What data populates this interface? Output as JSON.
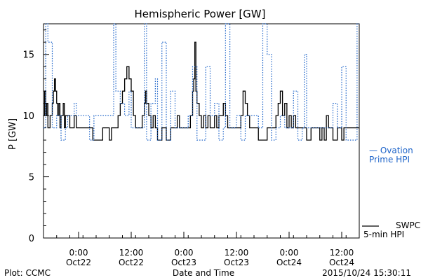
{
  "chart_data": {
    "type": "line",
    "title": "Hemispheric Power [GW]",
    "xlabel": "Date and Time",
    "ylabel": "P [GW]",
    "ylim": [
      0,
      17.5
    ],
    "yticks": [
      0,
      5,
      10,
      15
    ],
    "xlim": [
      "2015-10-21 16:00",
      "2015-10-24 16:00"
    ],
    "xticks": [
      {
        "time": "2015-10-22 00:00",
        "label1": "0:00",
        "label2": "Oct22"
      },
      {
        "time": "2015-10-22 12:00",
        "label1": "12:00",
        "label2": "Oct22"
      },
      {
        "time": "2015-10-23 00:00",
        "label1": "0:00",
        "label2": "Oct23"
      },
      {
        "time": "2015-10-23 12:00",
        "label1": "12:00",
        "label2": "Oct23"
      },
      {
        "time": "2015-10-24 00:00",
        "label1": "0:00",
        "label2": "Oct24"
      },
      {
        "time": "2015-10-24 12:00",
        "label1": "12:00",
        "label2": "Oct24"
      }
    ],
    "grid": false,
    "legend_position": "right",
    "series": [
      {
        "name": "SWPC 5-min HPI",
        "color": "#000000",
        "style": "solid",
        "points": [
          [
            "2015-10-21 16:00",
            10
          ],
          [
            "2015-10-21 16:15",
            12
          ],
          [
            "2015-10-21 16:30",
            10
          ],
          [
            "2015-10-21 16:45",
            11
          ],
          [
            "2015-10-21 17:00",
            9
          ],
          [
            "2015-10-21 17:30",
            10
          ],
          [
            "2015-10-21 18:00",
            11
          ],
          [
            "2015-10-21 18:15",
            12
          ],
          [
            "2015-10-21 18:30",
            13
          ],
          [
            "2015-10-21 18:45",
            12
          ],
          [
            "2015-10-21 19:00",
            11
          ],
          [
            "2015-10-21 19:15",
            10
          ],
          [
            "2015-10-21 19:30",
            11
          ],
          [
            "2015-10-21 19:45",
            9
          ],
          [
            "2015-10-21 20:00",
            10
          ],
          [
            "2015-10-21 20:30",
            11
          ],
          [
            "2015-10-21 20:45",
            9
          ],
          [
            "2015-10-21 21:00",
            10
          ],
          [
            "2015-10-21 22:00",
            9
          ],
          [
            "2015-10-21 23:00",
            10
          ],
          [
            "2015-10-21 23:30",
            9
          ],
          [
            "2015-10-22 00:00",
            9
          ],
          [
            "2015-10-22 03:00",
            9
          ],
          [
            "2015-10-22 03:15",
            8
          ],
          [
            "2015-10-22 05:00",
            8
          ],
          [
            "2015-10-22 05:30",
            9
          ],
          [
            "2015-10-22 06:30",
            9
          ],
          [
            "2015-10-22 07:00",
            8
          ],
          [
            "2015-10-22 07:30",
            9
          ],
          [
            "2015-10-22 08:30",
            9
          ],
          [
            "2015-10-22 09:00",
            10
          ],
          [
            "2015-10-22 09:30",
            11
          ],
          [
            "2015-10-22 10:00",
            12
          ],
          [
            "2015-10-22 10:30",
            13
          ],
          [
            "2015-10-22 11:00",
            14
          ],
          [
            "2015-10-22 11:30",
            13
          ],
          [
            "2015-10-22 12:00",
            12
          ],
          [
            "2015-10-22 12:30",
            10
          ],
          [
            "2015-10-22 13:00",
            9
          ],
          [
            "2015-10-22 14:00",
            9
          ],
          [
            "2015-10-22 14:30",
            10
          ],
          [
            "2015-10-22 15:00",
            11
          ],
          [
            "2015-10-22 15:15",
            12
          ],
          [
            "2015-10-22 15:30",
            11
          ],
          [
            "2015-10-22 16:00",
            10
          ],
          [
            "2015-10-22 16:30",
            9
          ],
          [
            "2015-10-22 17:00",
            10
          ],
          [
            "2015-10-22 17:30",
            9
          ],
          [
            "2015-10-22 18:00",
            8
          ],
          [
            "2015-10-22 19:00",
            9
          ],
          [
            "2015-10-22 20:00",
            8
          ],
          [
            "2015-10-22 21:00",
            9
          ],
          [
            "2015-10-22 22:00",
            9
          ],
          [
            "2015-10-22 22:30",
            10
          ],
          [
            "2015-10-22 23:00",
            9
          ],
          [
            "2015-10-23 00:00",
            9
          ],
          [
            "2015-10-23 01:00",
            9
          ],
          [
            "2015-10-23 01:30",
            10
          ],
          [
            "2015-10-23 02:00",
            12
          ],
          [
            "2015-10-23 02:15",
            13
          ],
          [
            "2015-10-23 02:30",
            16
          ],
          [
            "2015-10-23 02:45",
            12
          ],
          [
            "2015-10-23 03:00",
            11
          ],
          [
            "2015-10-23 03:30",
            10
          ],
          [
            "2015-10-23 04:00",
            9
          ],
          [
            "2015-10-23 04:30",
            10
          ],
          [
            "2015-10-23 05:00",
            9
          ],
          [
            "2015-10-23 05:30",
            10
          ],
          [
            "2015-10-23 06:00",
            9
          ],
          [
            "2015-10-23 07:00",
            10
          ],
          [
            "2015-10-23 07:30",
            9
          ],
          [
            "2015-10-23 08:00",
            10
          ],
          [
            "2015-10-23 09:00",
            11
          ],
          [
            "2015-10-23 09:30",
            10
          ],
          [
            "2015-10-23 10:00",
            9
          ],
          [
            "2015-10-23 11:00",
            9
          ],
          [
            "2015-10-23 12:00",
            9
          ],
          [
            "2015-10-23 13:00",
            10
          ],
          [
            "2015-10-23 13:30",
            12
          ],
          [
            "2015-10-23 14:00",
            11
          ],
          [
            "2015-10-23 14:30",
            10
          ],
          [
            "2015-10-23 15:00",
            9
          ],
          [
            "2015-10-23 16:00",
            9
          ],
          [
            "2015-10-23 17:00",
            8
          ],
          [
            "2015-10-23 19:00",
            9
          ],
          [
            "2015-10-23 20:00",
            9
          ],
          [
            "2015-10-23 21:00",
            10
          ],
          [
            "2015-10-23 21:30",
            11
          ],
          [
            "2015-10-23 22:00",
            12
          ],
          [
            "2015-10-23 22:30",
            10
          ],
          [
            "2015-10-23 23:00",
            11
          ],
          [
            "2015-10-23 23:30",
            9
          ],
          [
            "2015-10-24 00:00",
            10
          ],
          [
            "2015-10-24 00:30",
            9
          ],
          [
            "2015-10-24 01:00",
            10
          ],
          [
            "2015-10-24 01:30",
            9
          ],
          [
            "2015-10-24 03:00",
            9
          ],
          [
            "2015-10-24 04:00",
            8
          ],
          [
            "2015-10-24 05:00",
            9
          ],
          [
            "2015-10-24 06:00",
            9
          ],
          [
            "2015-10-24 07:00",
            8
          ],
          [
            "2015-10-24 07:30",
            9
          ],
          [
            "2015-10-24 08:00",
            8
          ],
          [
            "2015-10-24 08:30",
            10
          ],
          [
            "2015-10-24 09:00",
            9
          ],
          [
            "2015-10-24 10:00",
            8
          ],
          [
            "2015-10-24 11:00",
            9
          ],
          [
            "2015-10-24 12:00",
            8
          ],
          [
            "2015-10-24 12:30",
            9
          ],
          [
            "2015-10-24 16:00",
            9
          ]
        ]
      },
      {
        "name": "Ovation Prime HPI",
        "color": "#1c63c9",
        "style": "dotted",
        "points": [
          [
            "2015-10-21 16:00",
            9
          ],
          [
            "2015-10-21 16:30",
            17.5
          ],
          [
            "2015-10-21 17:00",
            16
          ],
          [
            "2015-10-21 18:00",
            9
          ],
          [
            "2015-10-21 19:00",
            10
          ],
          [
            "2015-10-21 20:00",
            8
          ],
          [
            "2015-10-21 21:00",
            9
          ],
          [
            "2015-10-21 21:30",
            10
          ],
          [
            "2015-10-21 23:00",
            11
          ],
          [
            "2015-10-21 23:30",
            10
          ],
          [
            "2015-10-22 00:00",
            10
          ],
          [
            "2015-10-22 02:00",
            10
          ],
          [
            "2015-10-22 02:30",
            8
          ],
          [
            "2015-10-22 03:30",
            10
          ],
          [
            "2015-10-22 07:30",
            10
          ],
          [
            "2015-10-22 08:00",
            17.5
          ],
          [
            "2015-10-22 08:30",
            12
          ],
          [
            "2015-10-22 09:30",
            11
          ],
          [
            "2015-10-22 10:30",
            10
          ],
          [
            "2015-10-22 11:30",
            12
          ],
          [
            "2015-10-22 12:00",
            9
          ],
          [
            "2015-10-22 14:30",
            9
          ],
          [
            "2015-10-22 15:00",
            17.5
          ],
          [
            "2015-10-22 15:30",
            8
          ],
          [
            "2015-10-22 16:30",
            11
          ],
          [
            "2015-10-22 17:30",
            13
          ],
          [
            "2015-10-22 18:00",
            8
          ],
          [
            "2015-10-22 19:00",
            16
          ],
          [
            "2015-10-22 20:00",
            8
          ],
          [
            "2015-10-22 21:00",
            12
          ],
          [
            "2015-10-22 22:00",
            9
          ],
          [
            "2015-10-23 00:00",
            9
          ],
          [
            "2015-10-23 01:00",
            10
          ],
          [
            "2015-10-23 02:00",
            14
          ],
          [
            "2015-10-23 03:00",
            8
          ],
          [
            "2015-10-23 04:30",
            8
          ],
          [
            "2015-10-23 05:00",
            14
          ],
          [
            "2015-10-23 06:00",
            10
          ],
          [
            "2015-10-23 07:00",
            11
          ],
          [
            "2015-10-23 08:00",
            8
          ],
          [
            "2015-10-23 09:00",
            9
          ],
          [
            "2015-10-23 09:30",
            17.5
          ],
          [
            "2015-10-23 10:30",
            9
          ],
          [
            "2015-10-23 12:00",
            10
          ],
          [
            "2015-10-23 13:00",
            8
          ],
          [
            "2015-10-23 14:00",
            10
          ],
          [
            "2015-10-23 16:00",
            10
          ],
          [
            "2015-10-23 17:00",
            9
          ],
          [
            "2015-10-23 18:00",
            17.5
          ],
          [
            "2015-10-23 19:00",
            15
          ],
          [
            "2015-10-23 20:00",
            8
          ],
          [
            "2015-10-23 21:00",
            9
          ],
          [
            "2015-10-23 22:00",
            10
          ],
          [
            "2015-10-23 23:00",
            9
          ],
          [
            "2015-10-24 00:00",
            9
          ],
          [
            "2015-10-24 01:00",
            12
          ],
          [
            "2015-10-24 02:00",
            8
          ],
          [
            "2015-10-24 03:00",
            9
          ],
          [
            "2015-10-24 03:30",
            15
          ],
          [
            "2015-10-24 04:00",
            9
          ],
          [
            "2015-10-24 06:00",
            9
          ],
          [
            "2015-10-24 07:00",
            9
          ],
          [
            "2015-10-24 08:00",
            9
          ],
          [
            "2015-10-24 10:00",
            11
          ],
          [
            "2015-10-24 11:00",
            9
          ],
          [
            "2015-10-24 12:00",
            14
          ],
          [
            "2015-10-24 13:00",
            8
          ],
          [
            "2015-10-24 15:00",
            8
          ],
          [
            "2015-10-24 15:30",
            17.5
          ],
          [
            "2015-10-24 16:00",
            17.5
          ]
        ]
      }
    ],
    "legend": {
      "ovation_line1": "— Ovation",
      "ovation_line2": "Prime HPI",
      "swpc_line1": "SWPC",
      "swpc_line2": "5-min HPI"
    }
  },
  "footer": {
    "plot_credit": "Plot: CCMC",
    "timestamp": "2015/10/24 15:30:11"
  }
}
